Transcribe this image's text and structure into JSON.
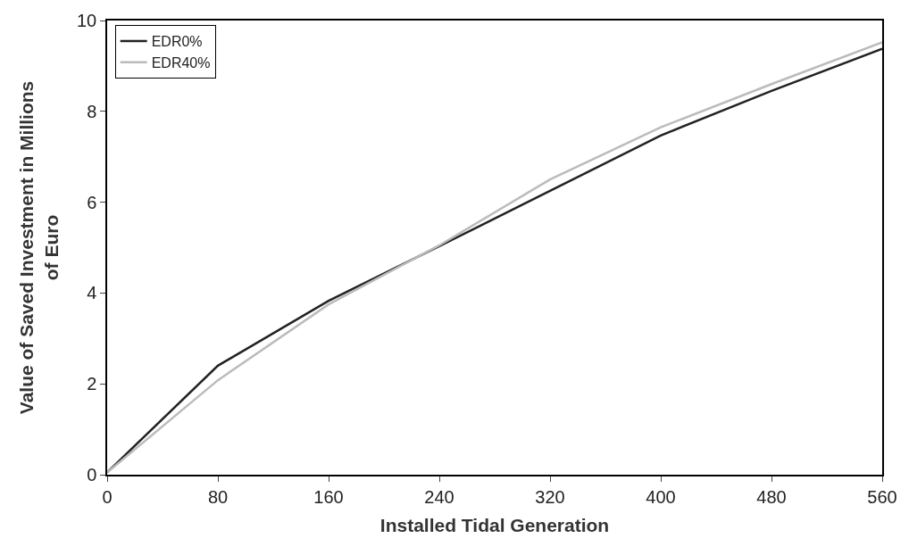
{
  "chart_data": {
    "type": "line",
    "xlabel": "Installed Tidal Generation",
    "ylabel": "Value of Saved Investment in Millions of Euro",
    "x": [
      0,
      80,
      160,
      240,
      320,
      400,
      480,
      560
    ],
    "series": [
      {
        "name": "EDR0%",
        "color": "#222222",
        "values": [
          0.05,
          2.4,
          3.83,
          5.03,
          6.25,
          7.47,
          8.45,
          9.38
        ]
      },
      {
        "name": "EDR40%",
        "color": "#bbbbbb",
        "values": [
          0.05,
          2.08,
          3.75,
          5.05,
          6.5,
          7.65,
          8.6,
          9.52
        ]
      }
    ],
    "xlim": [
      0,
      560
    ],
    "xticks": [
      0,
      80,
      160,
      240,
      320,
      400,
      480,
      560
    ],
    "ylim": [
      0,
      10
    ],
    "yticks": [
      0,
      2,
      4,
      6,
      8,
      10
    ],
    "legend": "top left",
    "marker": "none",
    "line_style": "solid"
  }
}
